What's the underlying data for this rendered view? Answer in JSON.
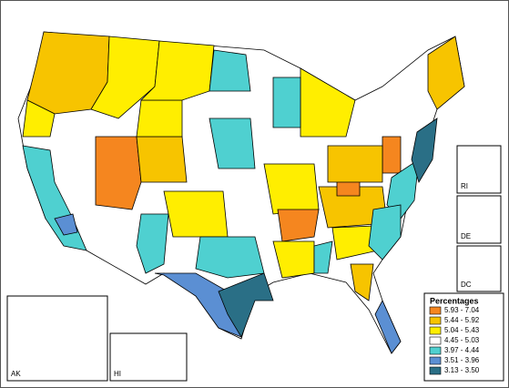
{
  "legend": {
    "title": "Percentages",
    "items": [
      {
        "label": "5.93 - 7.04",
        "color": "#f5861f"
      },
      {
        "label": "5.44 - 5.92",
        "color": "#f7c400"
      },
      {
        "label": "5.04 - 5.43",
        "color": "#ffee00"
      },
      {
        "label": "4.45 - 5.03",
        "color": "#ffffff"
      },
      {
        "label": "3.97 - 4.44",
        "color": "#4fd0d0"
      },
      {
        "label": "3.51 - 3.96",
        "color": "#5b8fd3"
      },
      {
        "label": "3.13 - 3.50",
        "color": "#2a6f86"
      }
    ]
  },
  "insets": [
    "AK",
    "HI",
    "RI",
    "DE",
    "DC"
  ]
}
